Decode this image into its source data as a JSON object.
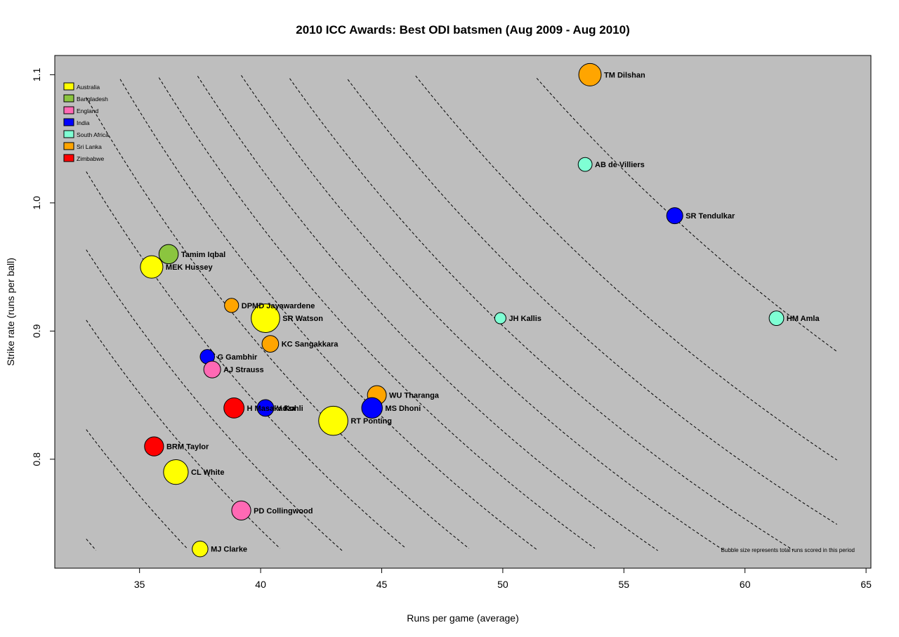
{
  "chart_data": {
    "type": "scatter",
    "title": "2010 ICC Awards: Best ODI batsmen (Aug 2009 - Aug 2010)",
    "xlabel": "Runs per game (average)",
    "ylabel": "Strike rate (runs per ball)",
    "xlim": [
      31.5,
      65.2
    ],
    "ylim": [
      0.715,
      1.115
    ],
    "xticks": [
      35,
      40,
      45,
      50,
      55,
      60,
      65
    ],
    "yticks": [
      0.8,
      0.9,
      1.0,
      1.1
    ],
    "xtick_labels": [
      "35",
      "40",
      "45",
      "50",
      "55",
      "60",
      "65"
    ],
    "ytick_labels": [
      "0.8",
      "0.9",
      "1.0",
      "1.1"
    ],
    "background": "#bebebe",
    "legend_position": "top-left",
    "legend": [
      {
        "name": "Australia",
        "color": "#ffff00"
      },
      {
        "name": "Bangladesh",
        "color": "#8bc53f"
      },
      {
        "name": "England",
        "color": "#ff69b4"
      },
      {
        "name": "India",
        "color": "#0000ff"
      },
      {
        "name": "South Africa",
        "color": "#7fffd4"
      },
      {
        "name": "Sri Lanka",
        "color": "#ffa500"
      },
      {
        "name": "Zimbabwe",
        "color": "#ff0000"
      }
    ],
    "note": "Bubble size represents total runs scored in this period",
    "points": [
      {
        "name": "TM Dilshan",
        "x": 53.6,
        "y": 1.1,
        "team": "Sri Lanka",
        "size": 1.0
      },
      {
        "name": "AB de Villiers",
        "x": 53.4,
        "y": 1.03,
        "team": "South Africa",
        "size": 0.62
      },
      {
        "name": "SR Tendulkar",
        "x": 57.1,
        "y": 0.99,
        "team": "India",
        "size": 0.72
      },
      {
        "name": "Tamim Iqbal",
        "x": 36.2,
        "y": 0.96,
        "team": "Bangladesh",
        "size": 0.86
      },
      {
        "name": "MEK Hussey",
        "x": 35.5,
        "y": 0.95,
        "team": "Australia",
        "size": 1.0
      },
      {
        "name": "DPMD Jayawardene",
        "x": 38.8,
        "y": 0.92,
        "team": "Sri Lanka",
        "size": 0.63
      },
      {
        "name": "SR Watson",
        "x": 40.2,
        "y": 0.91,
        "team": "Australia",
        "size": 1.27
      },
      {
        "name": "JH Kallis",
        "x": 49.9,
        "y": 0.91,
        "team": "South Africa",
        "size": 0.5
      },
      {
        "name": "HM Amla",
        "x": 61.3,
        "y": 0.91,
        "team": "South Africa",
        "size": 0.65
      },
      {
        "name": "KC Sangakkara",
        "x": 40.4,
        "y": 0.89,
        "team": "Sri Lanka",
        "size": 0.74
      },
      {
        "name": "G Gambhir",
        "x": 37.8,
        "y": 0.88,
        "team": "India",
        "size": 0.64
      },
      {
        "name": "AJ Strauss",
        "x": 38.0,
        "y": 0.87,
        "team": "England",
        "size": 0.75
      },
      {
        "name": "WU Tharanga",
        "x": 44.8,
        "y": 0.85,
        "team": "Sri Lanka",
        "size": 0.84
      },
      {
        "name": "H Masakadza",
        "x": 38.9,
        "y": 0.84,
        "team": "Zimbabwe",
        "size": 0.9
      },
      {
        "name": "V Kohli",
        "x": 40.2,
        "y": 0.84,
        "team": "India",
        "size": 0.74
      },
      {
        "name": "MS Dhoni",
        "x": 44.6,
        "y": 0.84,
        "team": "India",
        "size": 0.92
      },
      {
        "name": "RT Ponting",
        "x": 43.0,
        "y": 0.83,
        "team": "Australia",
        "size": 1.3
      },
      {
        "name": "BRM Taylor",
        "x": 35.6,
        "y": 0.81,
        "team": "Zimbabwe",
        "size": 0.85
      },
      {
        "name": "CL White",
        "x": 36.5,
        "y": 0.79,
        "team": "Australia",
        "size": 1.1
      },
      {
        "name": "PD Collingwood",
        "x": 39.2,
        "y": 0.76,
        "team": "England",
        "size": 0.85
      },
      {
        "name": "MJ Clarke",
        "x": 37.5,
        "y": 0.73,
        "team": "Australia",
        "size": 0.7
      }
    ],
    "contour_products": [
      24.2,
      27.0,
      29.8,
      31.6,
      33.6,
      35.5,
      37.5,
      39.3,
      41.1,
      43.1,
      45.2,
      47.8,
      51.0,
      56.4
    ]
  }
}
